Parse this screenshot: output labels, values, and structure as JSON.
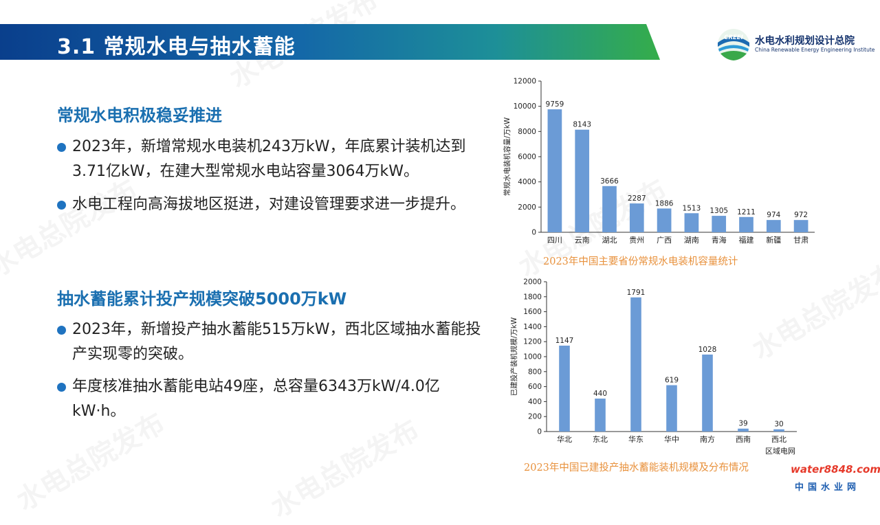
{
  "header": {
    "title": "3.1 常规水电与抽水蓄能"
  },
  "logo": {
    "badge": "CREEI",
    "name": "水电水利规划设计总院",
    "en": "China Renewable Energy Engineering Institute"
  },
  "watermark": "水电总院发布",
  "sections": [
    {
      "heading": "常规水电积极稳妥推进",
      "bullets": [
        "2023年，新增常规水电装机243万kW，年底累计装机达到3.71亿kW，在建大型常规水电站容量3064万kW。",
        "水电工程向高海拔地区挺进，对建设管理要求进一步提升。"
      ]
    },
    {
      "heading": "抽水蓄能累计投产规模突破5000万kW",
      "bullets": [
        "2023年，新增投产抽水蓄能515万kW，西北区域抽水蓄能投产实现零的突破。",
        "年度核准抽水蓄能电站49座，总容量6343万kW/4.0亿kW·h。"
      ]
    }
  ],
  "chart_data": [
    {
      "type": "bar",
      "title": "2023年中国主要省份常规水电装机容量统计",
      "ylabel": "常规水电装机容量/万kW",
      "xlabel": "",
      "ylim": [
        0,
        12000
      ],
      "yticks": [
        0,
        2000,
        4000,
        6000,
        8000,
        10000,
        12000
      ],
      "categories": [
        "四川",
        "云南",
        "湖北",
        "贵州",
        "广西",
        "湖南",
        "青海",
        "福建",
        "新疆",
        "甘肃"
      ],
      "values": [
        9759,
        8143,
        3666,
        2287,
        1886,
        1513,
        1305,
        1211,
        974,
        972
      ],
      "color": "#6b9bd6",
      "grid": false
    },
    {
      "type": "bar",
      "title": "2023年中国已建投产抽水蓄能装机规模及分布情况",
      "ylabel": "已建投产装机规模/万kW",
      "xlabel": "区域电网",
      "ylim": [
        0,
        2000
      ],
      "yticks": [
        0,
        200,
        400,
        600,
        800,
        1000,
        1200,
        1400,
        1600,
        1800,
        2000
      ],
      "categories": [
        "华北",
        "东北",
        "华东",
        "华中",
        "南方",
        "西南",
        "西北"
      ],
      "values": [
        1147,
        440,
        1791,
        619,
        1028,
        39,
        30
      ],
      "color": "#6b9bd6",
      "grid": false
    }
  ],
  "footer": {
    "brand": "water8848.com",
    "sub": "中国水业网"
  }
}
